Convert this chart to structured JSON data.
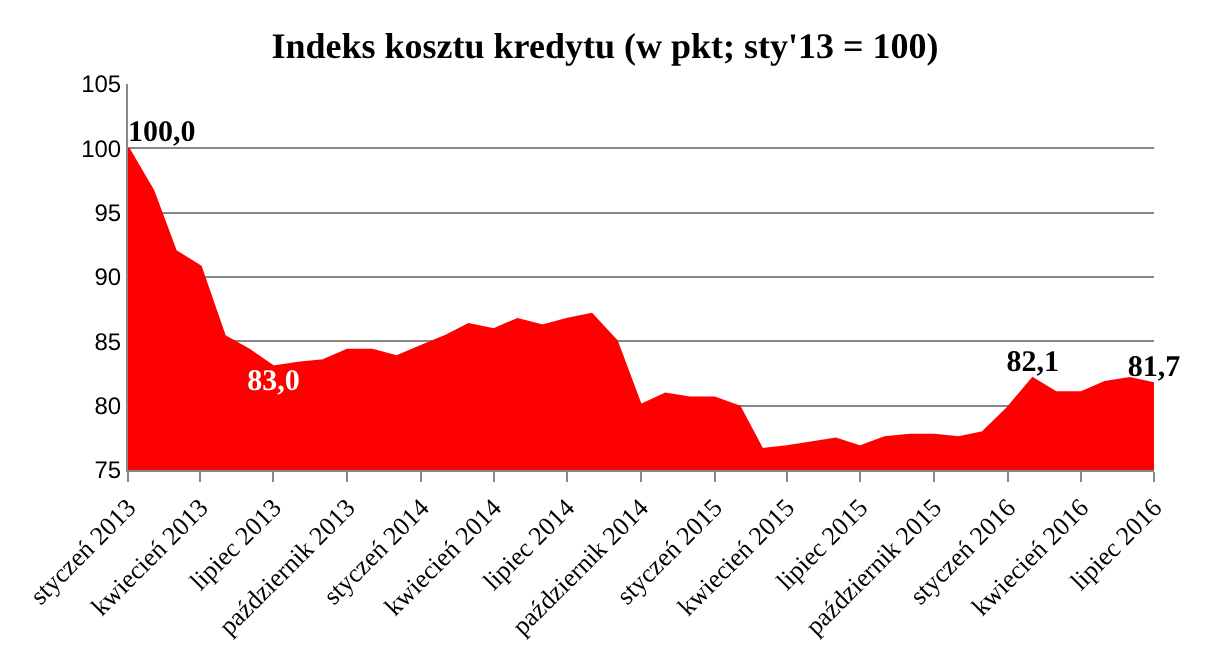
{
  "chart_data": {
    "type": "area",
    "title": "Indeks kosztu kredytu (w pkt; sty'13 = 100)",
    "x": [
      "2013-01",
      "2013-02",
      "2013-03",
      "2013-04",
      "2013-05",
      "2013-06",
      "2013-07",
      "2013-08",
      "2013-09",
      "2013-10",
      "2013-11",
      "2013-12",
      "2014-01",
      "2014-02",
      "2014-03",
      "2014-04",
      "2014-05",
      "2014-06",
      "2014-07",
      "2014-08",
      "2014-09",
      "2014-10",
      "2014-11",
      "2014-12",
      "2015-01",
      "2015-02",
      "2015-03",
      "2015-04",
      "2015-05",
      "2015-06",
      "2015-07",
      "2015-08",
      "2015-09",
      "2015-10",
      "2015-11",
      "2015-12",
      "2016-01",
      "2016-02",
      "2016-03",
      "2016-04",
      "2016-05",
      "2016-06",
      "2016-07"
    ],
    "series": [
      {
        "color": "#ff0000",
        "values": [
          100.0,
          96.7,
          92.0,
          90.8,
          85.4,
          84.3,
          83.0,
          83.3,
          83.5,
          84.3,
          84.3,
          83.8,
          84.6,
          85.4,
          86.3,
          85.9,
          86.7,
          86.2,
          86.7,
          87.1,
          85.0,
          80.0,
          80.9,
          80.6,
          80.6,
          79.9,
          76.6,
          76.8,
          77.1,
          77.4,
          76.8,
          77.5,
          77.7,
          77.7,
          77.5,
          77.9,
          79.8,
          82.1,
          81.0,
          81.0,
          81.8,
          82.1,
          81.7
        ],
        "value_labels": [
          "100,0",
          null,
          null,
          null,
          null,
          null,
          "83,0",
          null,
          null,
          null,
          null,
          null,
          null,
          null,
          null,
          null,
          null,
          null,
          null,
          null,
          null,
          null,
          null,
          null,
          null,
          null,
          null,
          null,
          null,
          null,
          null,
          null,
          null,
          null,
          null,
          null,
          null,
          "82,1",
          null,
          null,
          null,
          null,
          "81,7"
        ]
      }
    ],
    "xlim": [
      "2013-01",
      "2016-07"
    ],
    "xticks": [
      {
        "value": "2013-01",
        "label": "styczeń 2013"
      },
      {
        "value": "2013-04",
        "label": "kwiecień 2013"
      },
      {
        "value": "2013-07",
        "label": "lipiec 2013"
      },
      {
        "value": "2013-10",
        "label": "październik 2013"
      },
      {
        "value": "2014-01",
        "label": "styczeń 2014"
      },
      {
        "value": "2014-04",
        "label": "kwiecień 2014"
      },
      {
        "value": "2014-07",
        "label": "lipiec 2014"
      },
      {
        "value": "2014-10",
        "label": "październik 2014"
      },
      {
        "value": "2015-01",
        "label": "styczeń 2015"
      },
      {
        "value": "2015-04",
        "label": "kwiecień 2015"
      },
      {
        "value": "2015-07",
        "label": "lipiec 2015"
      },
      {
        "value": "2015-10",
        "label": "październik 2015"
      },
      {
        "value": "2016-01",
        "label": "styczeń 2016"
      },
      {
        "value": "2016-04",
        "label": "kwiecień 2016"
      },
      {
        "value": "2016-07",
        "label": "lipiec 2016"
      }
    ],
    "ylim": [
      75,
      105
    ],
    "yticks": [
      75,
      80,
      85,
      90,
      95,
      100,
      105
    ],
    "grid": "y"
  }
}
